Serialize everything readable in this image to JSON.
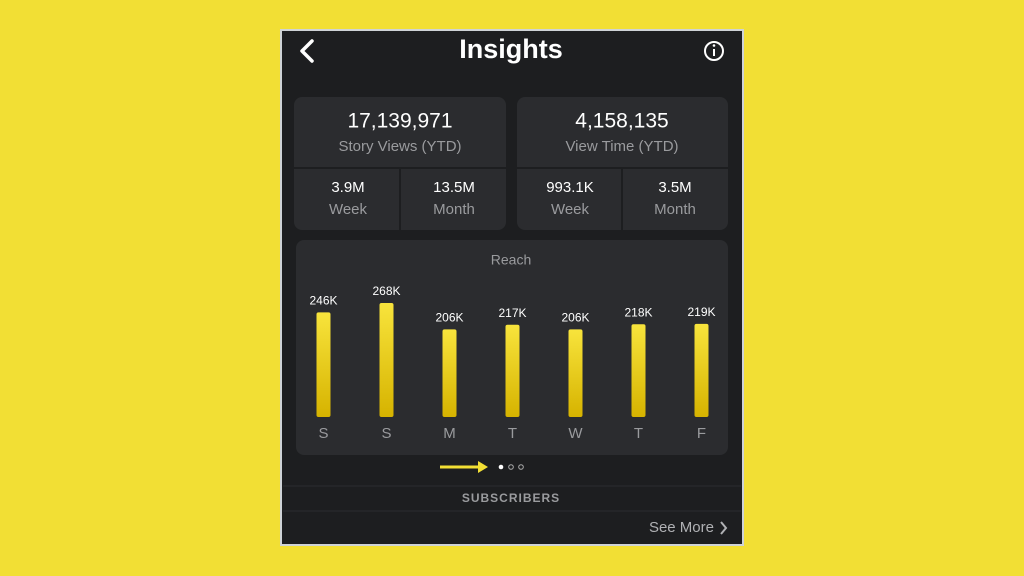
{
  "header": {
    "title": "Insights"
  },
  "cards": [
    {
      "total": "17,139,971",
      "label": "Story Views (YTD)",
      "stats": [
        {
          "value": "3.9M",
          "label": "Week"
        },
        {
          "value": "13.5M",
          "label": "Month"
        }
      ]
    },
    {
      "total": "4,158,135",
      "label": "View Time (YTD)",
      "stats": [
        {
          "value": "993.1K",
          "label": "Week"
        },
        {
          "value": "3.5M",
          "label": "Month"
        }
      ]
    }
  ],
  "chart_data": {
    "type": "bar",
    "title": "Reach",
    "categories": [
      "S",
      "S",
      "M",
      "T",
      "W",
      "T",
      "F"
    ],
    "values": [
      246000,
      268000,
      206000,
      217000,
      206000,
      218000,
      219000
    ],
    "value_labels": [
      "246K",
      "268K",
      "206K",
      "217K",
      "206K",
      "218K",
      "219K"
    ],
    "color": "#f5dc2a"
  },
  "section": {
    "title": "SUBSCRIBERS"
  },
  "link": {
    "label": "See More"
  }
}
